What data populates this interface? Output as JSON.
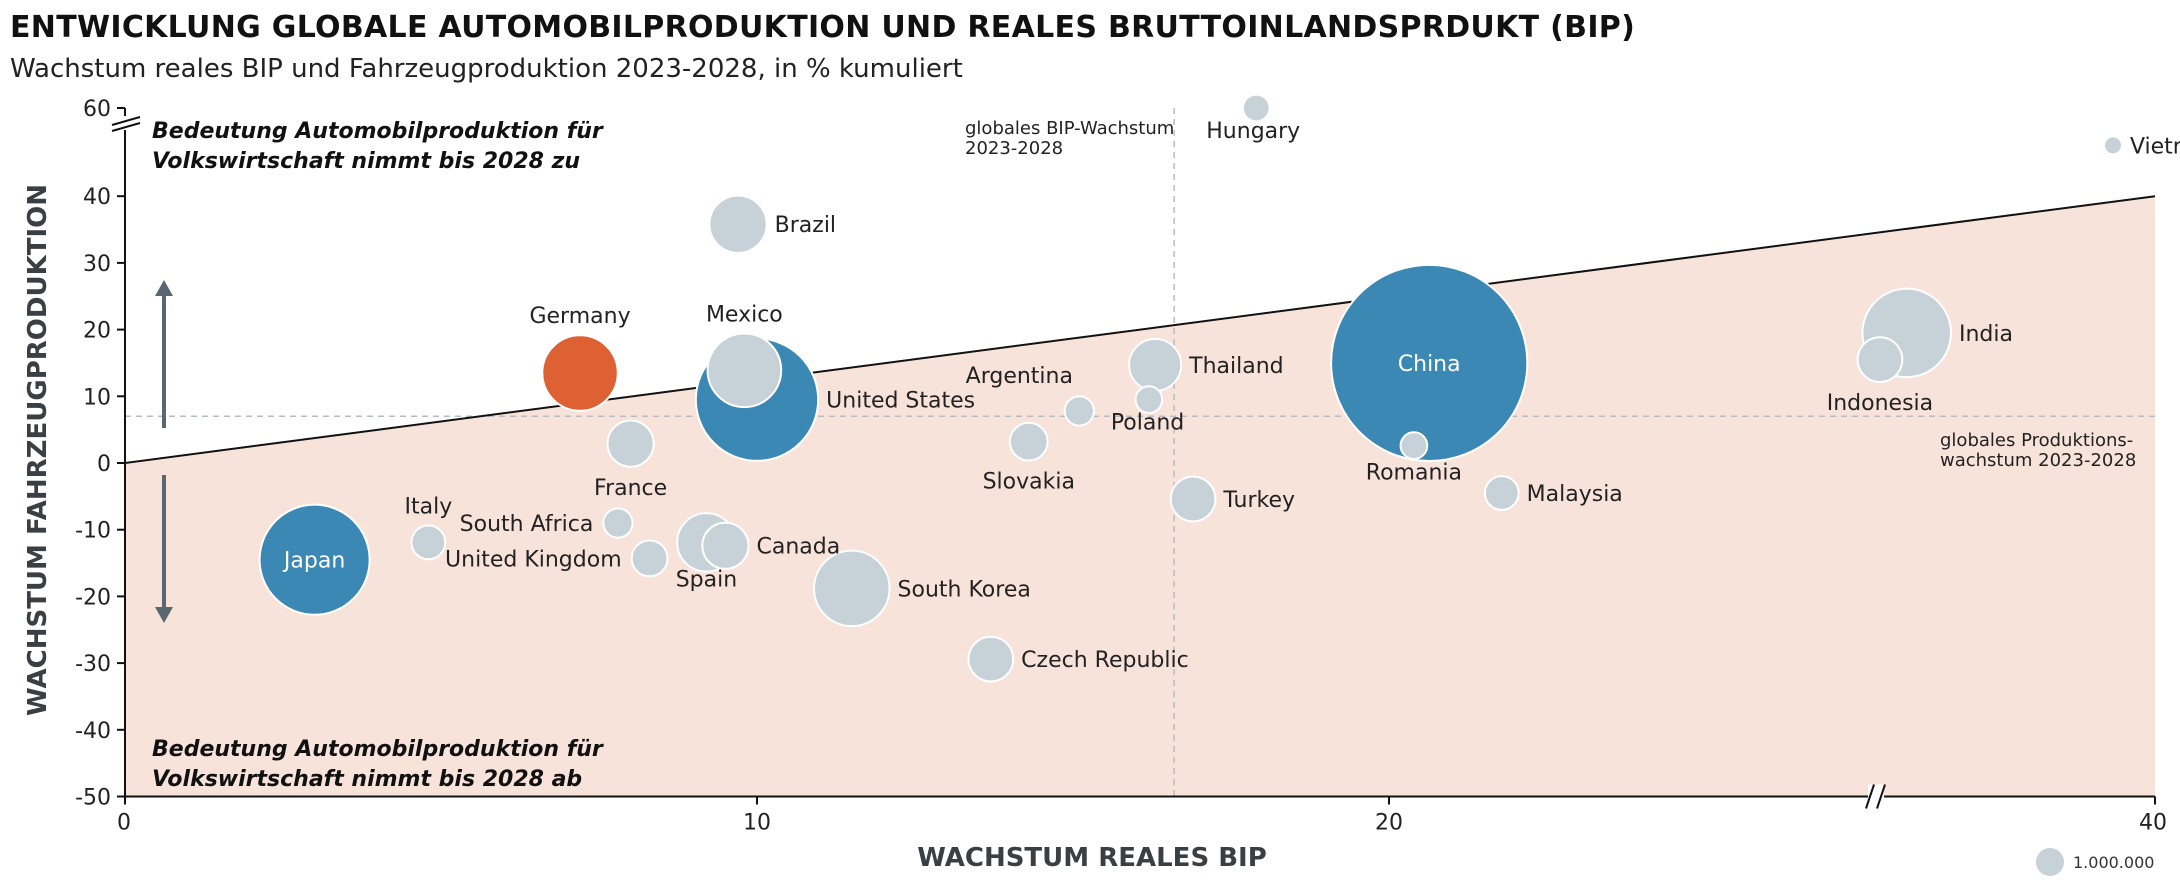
{
  "title": "ENTWICKLUNG GLOBALE AUTOMOBILPRODUKTION UND REALES BRUTTOINLANDSPRDUKT (BIP)",
  "subtitle": "Wachstum reales BIP und Fahrzeugproduktion 2023-2028, in % kumuliert",
  "chart_data": {
    "type": "scatter",
    "subtype": "bubble",
    "xlabel": "WACHSTUM REALES BIP",
    "ylabel": "WACHSTUM FAHRZEUGPRODUKTION",
    "xlim": [
      0,
      40
    ],
    "ylim": [
      -50,
      60
    ],
    "x_ticks": [
      "0",
      "10",
      "20",
      "40"
    ],
    "y_ticks": [
      "60",
      "40",
      "30",
      "20",
      "10",
      "0",
      "-10",
      "-20",
      "-30",
      "-40",
      "-50"
    ],
    "axis_breaks": "y between 40 and 60, x between 20 and 40",
    "grid": false,
    "reference_lines": {
      "gdp_growth_label": "globales BIP-Wachstum 2023-2028",
      "gdp_growth_x": 16.6,
      "production_growth_label": "globales Produktions-wachstum 2023-2028",
      "production_growth_y": 7,
      "diagonal_from": [
        0,
        0
      ],
      "diagonal_to": [
        40,
        40
      ]
    },
    "region_labels": {
      "upper": "Bedeutung Automobilproduktion für Volkswirtschaft nimmt bis 2028 zu",
      "lower": "Bedeutung Automobilproduktion für Volkswirtschaft nimmt bis 2028 ab"
    },
    "size_legend": "1.000.000",
    "colors": {
      "highlight": "#dd6132",
      "major": "#3b88b5",
      "other": "#c7d1d8",
      "shade": "#f8e3db"
    },
    "points": [
      {
        "name": "Hungary",
        "x": 17.9,
        "y": 59.5,
        "production_mio": 0.5,
        "color": "other"
      },
      {
        "name": "Vietnam",
        "x": 38.9,
        "y": 51.5,
        "production_mio": 0.2,
        "color": "other"
      },
      {
        "name": "Brazil",
        "x": 9.7,
        "y": 35.8,
        "production_mio": 2.3,
        "color": "other"
      },
      {
        "name": "Germany",
        "x": 7.2,
        "y": 13.5,
        "production_mio": 4.0,
        "color": "highlight"
      },
      {
        "name": "Mexico",
        "x": 9.8,
        "y": 13.9,
        "production_mio": 3.8,
        "color": "other"
      },
      {
        "name": "United States",
        "x": 10.0,
        "y": 9.5,
        "production_mio": 10.5,
        "color": "major"
      },
      {
        "name": "France",
        "x": 8.0,
        "y": 2.9,
        "production_mio": 1.5,
        "color": "other"
      },
      {
        "name": "Argentina",
        "x": 15.1,
        "y": 7.8,
        "production_mio": 0.6,
        "color": "other"
      },
      {
        "name": "Poland",
        "x": 16.2,
        "y": 9.5,
        "production_mio": 0.5,
        "color": "other"
      },
      {
        "name": "Thailand",
        "x": 16.3,
        "y": 14.7,
        "production_mio": 1.9,
        "color": "other"
      },
      {
        "name": "Slovakia",
        "x": 14.3,
        "y": 3.2,
        "production_mio": 1.0,
        "color": "other"
      },
      {
        "name": "Turkey",
        "x": 16.9,
        "y": -5.4,
        "production_mio": 1.4,
        "color": "other"
      },
      {
        "name": "China",
        "x": 21.0,
        "y": 15.0,
        "production_mio": 27.0,
        "color": "major"
      },
      {
        "name": "Romania",
        "x": 20.6,
        "y": 2.6,
        "production_mio": 0.5,
        "color": "other"
      },
      {
        "name": "India",
        "x": 33.5,
        "y": 19.5,
        "production_mio": 5.5,
        "color": "other"
      },
      {
        "name": "Indonesia",
        "x": 32.8,
        "y": 15.5,
        "production_mio": 1.4,
        "color": "other"
      },
      {
        "name": "Malaysia",
        "x": 22.9,
        "y": -4.5,
        "production_mio": 0.8,
        "color": "other"
      },
      {
        "name": "Japan",
        "x": 3.0,
        "y": -14.5,
        "production_mio": 8.5,
        "color": "major"
      },
      {
        "name": "Italy",
        "x": 4.8,
        "y": -11.9,
        "production_mio": 0.8,
        "color": "other"
      },
      {
        "name": "South Africa",
        "x": 7.8,
        "y": -9.0,
        "production_mio": 0.6,
        "color": "other"
      },
      {
        "name": "United Kingdom",
        "x": 8.3,
        "y": -14.3,
        "production_mio": 0.9,
        "color": "other"
      },
      {
        "name": "Spain",
        "x": 9.2,
        "y": -11.9,
        "production_mio": 2.4,
        "color": "other"
      },
      {
        "name": "Canada",
        "x": 9.5,
        "y": -12.4,
        "production_mio": 1.5,
        "color": "other"
      },
      {
        "name": "South Korea",
        "x": 11.5,
        "y": -18.8,
        "production_mio": 4.0,
        "color": "other"
      },
      {
        "name": "Czech Republic",
        "x": 13.7,
        "y": -29.4,
        "production_mio": 1.4,
        "color": "other"
      }
    ]
  }
}
